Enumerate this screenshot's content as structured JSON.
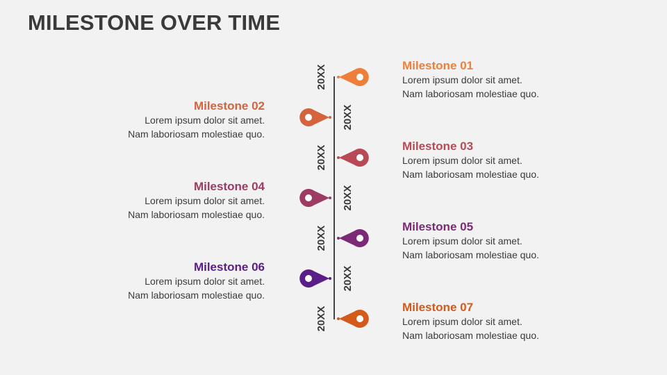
{
  "title": "MILESTONE OVER TIME",
  "milestones": [
    {
      "title": "Milestone 01",
      "line1": "Lorem ipsum dolor sit amet.",
      "line2": "Nam laboriosam molestiae quo.",
      "year": "20XX",
      "color": "#ee7f3b"
    },
    {
      "title": "Milestone 02",
      "line1": "Lorem ipsum dolor sit amet.",
      "line2": "Nam laboriosam molestiae quo.",
      "year": "20XX",
      "color": "#d4643e"
    },
    {
      "title": "Milestone 03",
      "line1": "Lorem ipsum dolor sit amet.",
      "line2": "Nam laboriosam molestiae quo.",
      "year": "20XX",
      "color": "#b94a55"
    },
    {
      "title": "Milestone 04",
      "line1": "Lorem ipsum dolor sit amet.",
      "line2": "Nam laboriosam molestiae quo.",
      "year": "20XX",
      "color": "#9c3b63"
    },
    {
      "title": "Milestone 05",
      "line1": "Lorem ipsum dolor sit amet.",
      "line2": "Nam laboriosam molestiae quo.",
      "year": "20XX",
      "color": "#7c2a76"
    },
    {
      "title": "Milestone 06",
      "line1": "Lorem ipsum dolor sit amet.",
      "line2": "Nam laboriosam molestiae quo.",
      "year": "20XX",
      "color": "#5b1e88"
    },
    {
      "title": "Milestone 07",
      "line1": "Lorem ipsum dolor sit amet.",
      "line2": "Nam laboriosam molestiae quo.",
      "year": "20XX",
      "color": "#d45a1b"
    }
  ]
}
